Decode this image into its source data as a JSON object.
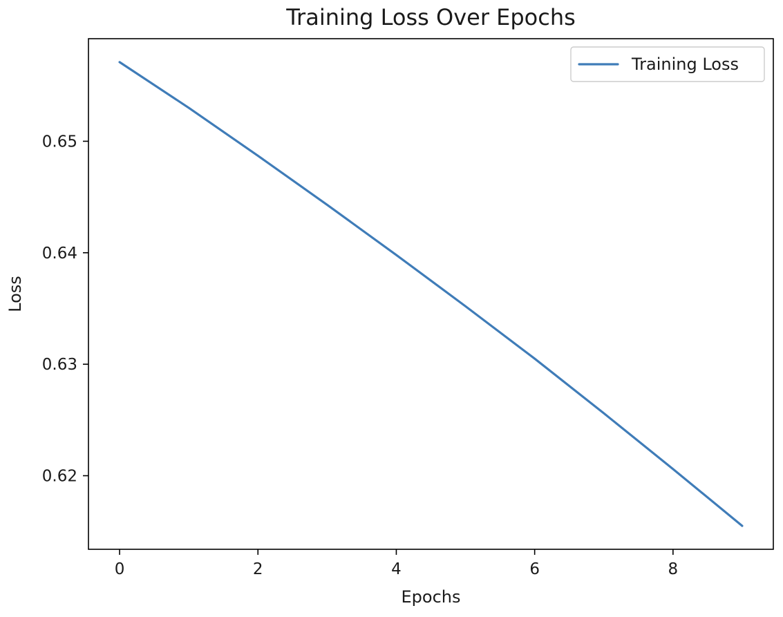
{
  "chart_data": {
    "type": "line",
    "title": "Training Loss Over Epochs",
    "xlabel": "Epochs",
    "ylabel": "Loss",
    "x": [
      0,
      1,
      2,
      3,
      4,
      5,
      6,
      7,
      8,
      9
    ],
    "series": [
      {
        "name": "Training Loss",
        "color": "#3f7cb8",
        "values": [
          0.6571,
          0.653,
          0.6487,
          0.6443,
          0.6398,
          0.6352,
          0.6305,
          0.6256,
          0.6206,
          0.6155
        ]
      }
    ],
    "xlim": [
      -0.45,
      9.45
    ],
    "ylim": [
      0.6134,
      0.6592
    ],
    "xticks": [
      0,
      2,
      4,
      6,
      8
    ],
    "xtick_labels": [
      "0",
      "2",
      "4",
      "6",
      "8"
    ],
    "yticks": [
      0.62,
      0.63,
      0.64,
      0.65
    ],
    "ytick_labels": [
      "0.62",
      "0.63",
      "0.64",
      "0.65"
    ],
    "grid": false,
    "legend_position": "top-right"
  }
}
